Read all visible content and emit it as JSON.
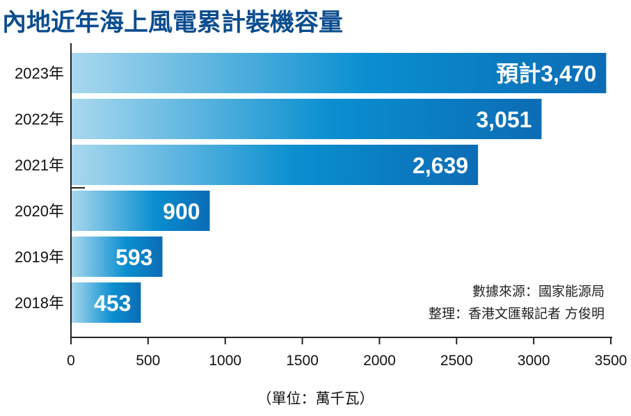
{
  "title": "內地近年海上風電累計裝機容量",
  "chart_data": {
    "type": "bar",
    "orientation": "horizontal",
    "categories": [
      "2023年",
      "2022年",
      "2021年",
      "2020年",
      "2019年",
      "2018年"
    ],
    "values": [
      3470,
      3051,
      2639,
      900,
      593,
      453
    ],
    "data_labels": [
      "預計3,470",
      "3,051",
      "2,639",
      "900",
      "593",
      "453"
    ],
    "xlim": [
      0,
      3500
    ],
    "x_ticks": [
      0,
      500,
      1000,
      1500,
      2000,
      2500,
      3000,
      3500
    ],
    "xlabel": "（單位：萬千瓦）",
    "grid": false,
    "bar_gradient": [
      "#a9d8ee",
      "#0a8fd0",
      "#0c6cb5"
    ]
  },
  "source_note": "數據來源：國家能源局",
  "editor_note": "整理：香港文匯報記者 方俊明"
}
